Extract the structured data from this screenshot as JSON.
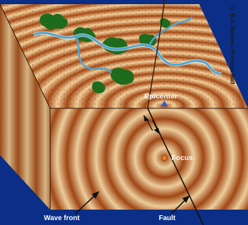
{
  "labels": {
    "epicenter": "Epicenter",
    "focus": "Focus",
    "wave_front": "Wave front",
    "fault": "Fault",
    "credit": "© B.J. Skinner / Prentice Hall"
  },
  "colors": {
    "background": "#0b2e86",
    "ring_dark": "#a64a16",
    "ring_light": "#f5d6a2",
    "river": "#4aa8d8",
    "forest": "#1e6b1e",
    "epicenter_marker": "#2a5bd7",
    "focus_marker": "#f07820"
  },
  "wave_rings": 11
}
